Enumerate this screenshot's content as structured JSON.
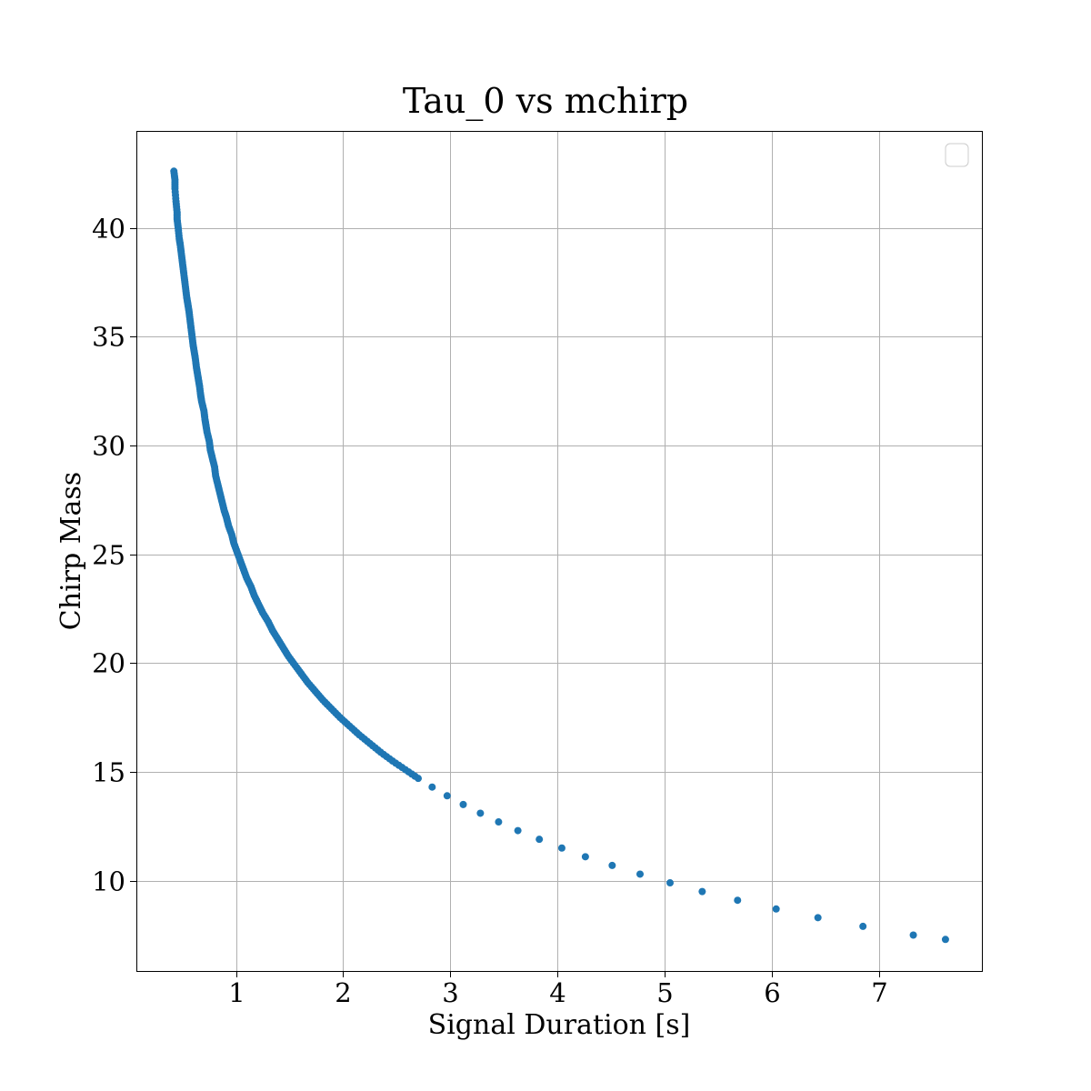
{
  "chart_data": {
    "type": "scatter",
    "title": "Tau_0 vs mchirp",
    "xlabel": "Signal Duration [s]",
    "ylabel": "Chirp Mass",
    "xlim": [
      0.07,
      7.96
    ],
    "ylim": [
      5.85,
      44.45
    ],
    "xticks": [
      1,
      2,
      3,
      4,
      5,
      6,
      7
    ],
    "yticks": [
      10,
      15,
      20,
      25,
      30,
      35,
      40
    ],
    "grid": true,
    "legend": "top-right",
    "marker_color": "#1f77b4",
    "points": [
      [
        0.42,
        42.6
      ],
      [
        0.43,
        42.2
      ],
      [
        0.43,
        41.8
      ],
      [
        0.44,
        41.2
      ],
      [
        0.45,
        40.7
      ],
      [
        0.45,
        40.4
      ],
      [
        0.46,
        40.0
      ],
      [
        0.47,
        39.5
      ],
      [
        0.48,
        39.2
      ],
      [
        0.49,
        38.8
      ],
      [
        0.5,
        38.4
      ],
      [
        0.51,
        38.0
      ],
      [
        0.52,
        37.6
      ],
      [
        0.53,
        37.2
      ],
      [
        0.54,
        36.8
      ],
      [
        0.55,
        36.5
      ],
      [
        0.56,
        36.2
      ],
      [
        0.57,
        35.8
      ],
      [
        0.58,
        35.4
      ],
      [
        0.59,
        35.0
      ],
      [
        0.6,
        34.6
      ],
      [
        0.61,
        34.3
      ],
      [
        0.62,
        34.0
      ],
      [
        0.63,
        33.6
      ],
      [
        0.64,
        33.3
      ],
      [
        0.65,
        33.0
      ],
      [
        0.66,
        32.7
      ],
      [
        0.67,
        32.3
      ],
      [
        0.68,
        32.0
      ],
      [
        0.7,
        31.6
      ],
      [
        0.71,
        31.2
      ],
      [
        0.72,
        30.9
      ],
      [
        0.73,
        30.6
      ],
      [
        0.75,
        30.2
      ],
      [
        0.76,
        29.8
      ],
      [
        0.78,
        29.4
      ],
      [
        0.8,
        29.0
      ],
      [
        0.81,
        28.6
      ],
      [
        0.83,
        28.2
      ],
      [
        0.85,
        27.8
      ],
      [
        0.87,
        27.4
      ],
      [
        0.89,
        27.0
      ],
      [
        0.91,
        26.7
      ],
      [
        0.93,
        26.3
      ],
      [
        0.96,
        25.9
      ],
      [
        0.98,
        25.5
      ],
      [
        1.01,
        25.1
      ],
      [
        1.04,
        24.7
      ],
      [
        1.07,
        24.3
      ],
      [
        1.1,
        23.9
      ],
      [
        1.14,
        23.5
      ],
      [
        1.17,
        23.1
      ],
      [
        1.21,
        22.7
      ],
      [
        1.25,
        22.3
      ],
      [
        1.3,
        21.9
      ],
      [
        1.34,
        21.5
      ],
      [
        1.39,
        21.1
      ],
      [
        1.44,
        20.7
      ],
      [
        1.49,
        20.3
      ],
      [
        1.55,
        19.9
      ],
      [
        1.61,
        19.5
      ],
      [
        1.67,
        19.1
      ],
      [
        1.74,
        18.7
      ],
      [
        1.81,
        18.3
      ],
      [
        1.89,
        17.9
      ],
      [
        1.97,
        17.5
      ],
      [
        2.06,
        17.1
      ],
      [
        2.15,
        16.7
      ],
      [
        2.25,
        16.3
      ],
      [
        2.35,
        15.9
      ],
      [
        2.46,
        15.5
      ],
      [
        2.58,
        15.1
      ],
      [
        2.7,
        14.7
      ],
      [
        2.83,
        14.3
      ],
      [
        2.97,
        13.9
      ],
      [
        3.12,
        13.5
      ],
      [
        3.28,
        13.1
      ],
      [
        3.45,
        12.7
      ],
      [
        3.63,
        12.3
      ],
      [
        3.83,
        11.9
      ],
      [
        4.04,
        11.5
      ],
      [
        4.26,
        11.1
      ],
      [
        4.51,
        10.7
      ],
      [
        4.77,
        10.3
      ],
      [
        5.05,
        9.9
      ],
      [
        5.35,
        9.5
      ],
      [
        5.68,
        9.1
      ],
      [
        6.04,
        8.7
      ],
      [
        6.43,
        8.3
      ],
      [
        6.85,
        7.9
      ],
      [
        7.32,
        7.5
      ],
      [
        7.62,
        7.3
      ]
    ]
  }
}
